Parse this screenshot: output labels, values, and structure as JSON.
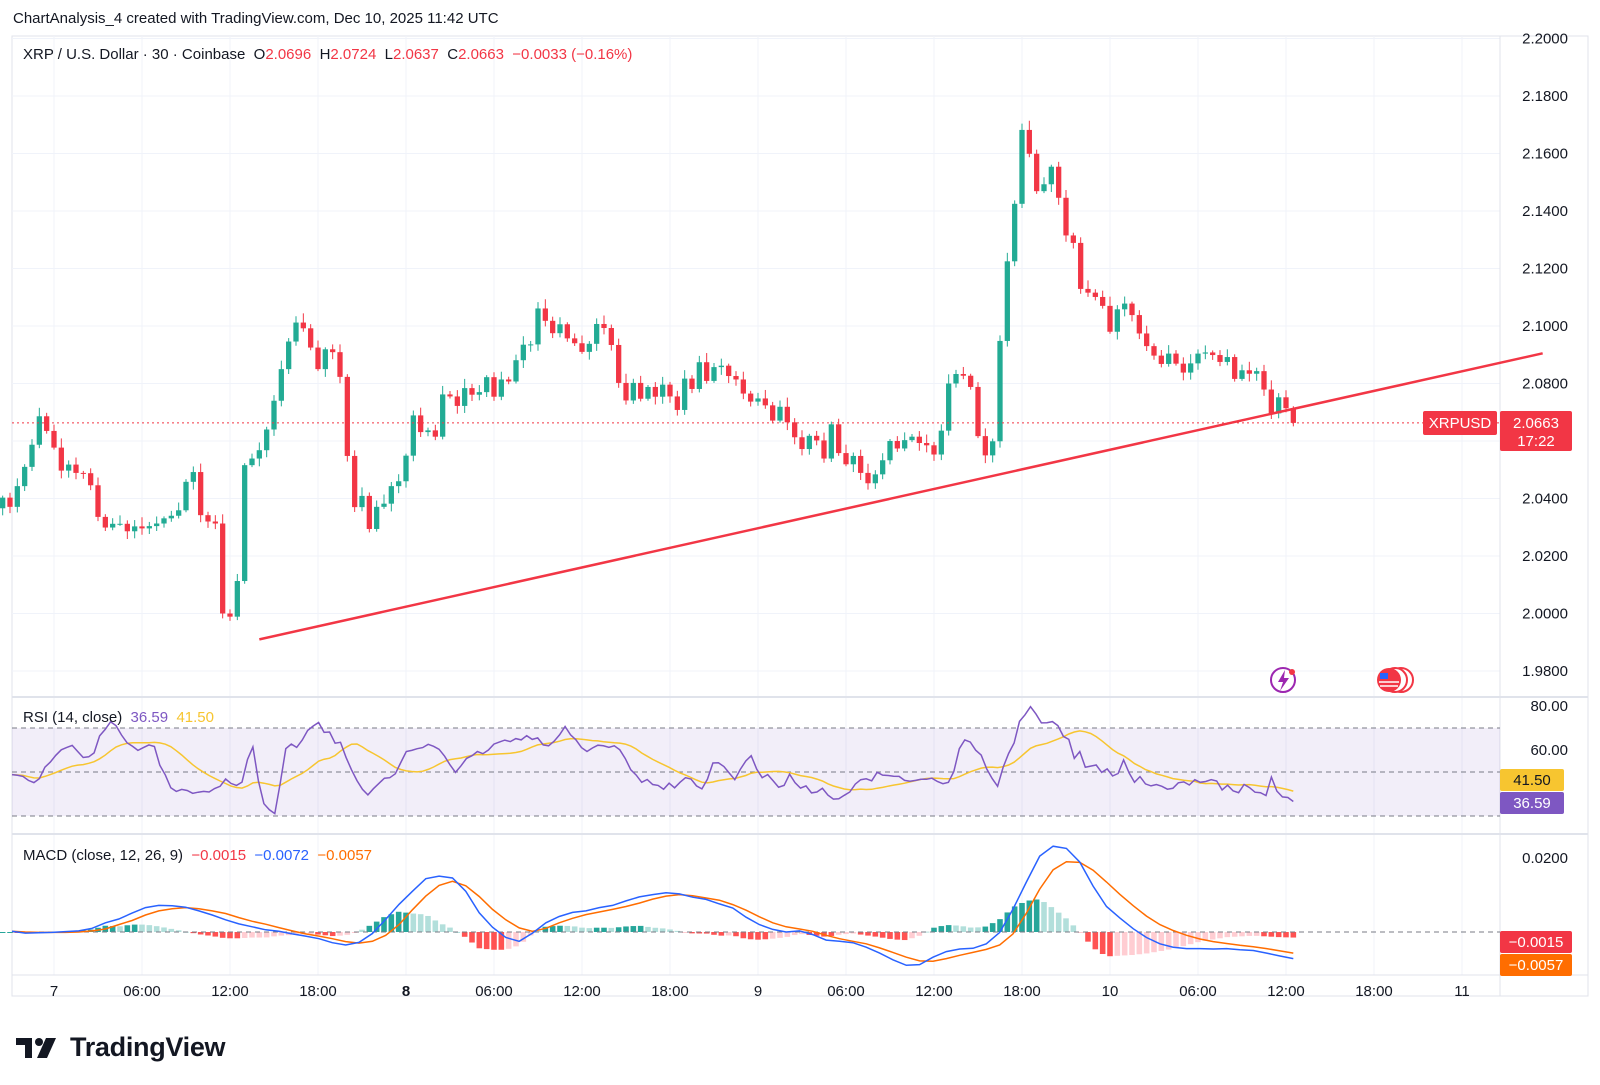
{
  "header": {
    "credit": "ChartAnalysis_4 created with TradingView.com, Dec 10, 2025 11:42 UTC"
  },
  "legend": {
    "symbol": "XRP / U.S. Dollar · 30 · Coinbase",
    "o_label": "O",
    "o_value": "2.0696",
    "h_label": "H",
    "h_value": "2.0724",
    "l_label": "L",
    "l_value": "2.0637",
    "c_label": "C",
    "c_value": "2.0663",
    "change": "−0.0033 (−0.16%)"
  },
  "price_tag": {
    "symbol": "XRPUSD",
    "price": "2.0663",
    "countdown": "17:22"
  },
  "rsi": {
    "label": "RSI (14, close)",
    "value": "36.59",
    "ma_value": "41.50"
  },
  "macd": {
    "label": "MACD (close, 12, 26, 9)",
    "hist": "−0.0015",
    "macd": "−0.0072",
    "signal": "−0.0057"
  },
  "brand": {
    "name": "TradingView"
  },
  "colors": {
    "up": "#22ab94",
    "down": "#f23645",
    "trendline": "#f23645",
    "rsi_line": "#7e57c2",
    "rsi_ma": "#f7c530",
    "macd_line": "#2962ff",
    "signal_line": "#ff6d00"
  },
  "chart_data": {
    "type": "candlestick",
    "title": "XRP / U.S. Dollar · 30 · Coinbase",
    "x_ticks": [
      "7",
      "06:00",
      "12:00",
      "18:00",
      "8",
      "06:00",
      "12:00",
      "18:00",
      "9",
      "06:00",
      "12:00",
      "18:00",
      "10",
      "06:00",
      "12:00",
      "18:00",
      "11"
    ],
    "price_axis": {
      "ticks": [
        "2.2000",
        "2.1800",
        "2.1600",
        "2.1400",
        "2.1200",
        "2.1000",
        "2.0800",
        "2.0400",
        "2.0200",
        "2.0000",
        "1.9800"
      ],
      "range": [
        1.975,
        2.2
      ]
    },
    "candle_closes": [
      2.0351,
      2.0336,
      2.0316,
      2.0341,
      2.0321,
      2.0292,
      2.0282,
      2.0335,
      2.0348,
      2.0372,
      2.0366,
      2.0403,
      2.0371,
      2.0443,
      2.051,
      2.0587,
      2.0686,
      2.0635,
      2.0577,
      2.0497,
      2.0518,
      2.0489,
      2.0488,
      2.0446,
      2.0336,
      2.0299,
      2.0312,
      2.0312,
      2.0286,
      2.0303,
      2.0296,
      2.0304,
      2.0313,
      2.0331,
      2.034,
      2.0359,
      2.0458,
      2.0492,
      2.0342,
      2.032,
      2.0313,
      2.0,
      1.9989,
      2.0113,
      2.0516,
      2.0539,
      2.0568,
      2.064,
      2.074,
      2.085,
      2.0946,
      2.1012,
      2.0992,
      2.0925,
      2.085,
      2.0919,
      2.0909,
      2.0823,
      2.0548,
      2.037,
      2.0409,
      2.0294,
      2.0371,
      2.0382,
      2.0443,
      2.046,
      2.0549,
      2.0689,
      2.0631,
      2.0637,
      2.0615,
      2.0762,
      2.0755,
      2.0722,
      2.0784,
      2.0761,
      2.077,
      2.0822,
      2.0754,
      2.0814,
      2.0807,
      2.0881,
      2.0935,
      2.0936,
      2.1061,
      2.1018,
      2.0975,
      2.1006,
      2.0957,
      2.094,
      2.091,
      2.0938,
      2.1007,
      2.0993,
      2.0934,
      2.0802,
      2.0741,
      2.0802,
      2.0747,
      2.0788,
      2.0754,
      2.0796,
      2.0755,
      2.0708,
      2.0817,
      2.0781,
      2.0874,
      2.0809,
      2.0857,
      2.0862,
      2.0826,
      2.0814,
      2.0765,
      2.0737,
      2.0748,
      2.0724,
      2.0671,
      2.0719,
      2.0665,
      2.0613,
      2.0572,
      2.0618,
      2.0602,
      2.0539,
      2.0658,
      2.0558,
      2.0519,
      2.0548,
      2.0489,
      2.0453,
      2.0484,
      2.0533,
      2.06,
      2.0574,
      2.0603,
      2.0615,
      2.0593,
      2.0585,
      2.0553,
      2.0636,
      2.08,
      2.0833,
      2.0827,
      2.0788,
      2.0617,
      2.055,
      2.0599,
      2.0948,
      2.1225,
      2.1425,
      2.1682,
      2.1599,
      2.1469,
      2.1493,
      2.1554,
      2.1446,
      2.1315,
      2.1289,
      2.1129,
      2.1116,
      2.1101,
      2.107,
      2.098,
      2.1058,
      2.1078,
      2.1038,
      2.0974,
      2.093,
      2.0897,
      2.0868,
      2.0904,
      2.0869,
      2.0838,
      2.087,
      2.0904,
      2.0908,
      2.0899,
      2.0875,
      2.0892,
      2.0816,
      2.0846,
      2.0834,
      2.0843,
      2.0779,
      2.0696,
      2.0752,
      2.0714,
      2.0663
    ],
    "trendline": {
      "color": "#f23645",
      "points": [
        {
          "date": "Dec 7 14:00",
          "price": 1.991
        },
        {
          "date": "Dec 11 05:30",
          "price": 2.0905
        }
      ]
    },
    "last_price": 2.0663,
    "rsi": {
      "name": "RSI (14, close)",
      "axis_ticks": [
        "80.00",
        "60.00"
      ],
      "range": [
        30,
        81
      ],
      "bands": [
        70,
        50,
        30
      ],
      "values": [
        48.8,
        48.5,
        48.0,
        46.2,
        45.2,
        47.0,
        52.2,
        54.5,
        57.6,
        60.1,
        61.2,
        62.1,
        59.3,
        56.6,
        56.9,
        58.7,
        66.4,
        69.3,
        72.8,
        71.1,
        66.8,
        63.3,
        61.7,
        59.8,
        61.1,
        62.3,
        61.6,
        53.1,
        48.7,
        42.8,
        41.2,
        42.1,
        41.6,
        40.3,
        40.8,
        41.2,
        40.9,
        42.5,
        43.5,
        46.8,
        44.8,
        43.9,
        45.4,
        55.7,
        61.4,
        46.0,
        35.6,
        32.8,
        31.1,
        45.1,
        60.6,
        62.7,
        61.2,
        64.5,
        68.9,
        70.9,
        72.5,
        68.0,
        68.2,
        63.1,
        63.5,
        56.7,
        51.0,
        46.1,
        42.1,
        39.6,
        42.4,
        44.8,
        47.2,
        47.4,
        49.2,
        54.3,
        59.3,
        59.8,
        60.6,
        61.1,
        62.6,
        61.7,
        60.3,
        57.2,
        53.2,
        49.8,
        52.8,
        56.2,
        57.4,
        59.3,
        58.3,
        60.0,
        62.7,
        63.6,
        64.5,
        63.8,
        65.2,
        64.6,
        66.5,
        64.8,
        65.5,
        62.3,
        61.9,
        64.0,
        66.9,
        70.7,
        66.9,
        64.6,
        61.1,
        59.3,
        60.9,
        62.2,
        61.9,
        61.2,
        61.9,
        60.1,
        56.1,
        51.0,
        48.6,
        45.3,
        46.6,
        44.3,
        43.9,
        42.2,
        44.9,
        42.8,
        45.3,
        47.4,
        46.8,
        43.7,
        42.3,
        46.7,
        54.1,
        54.2,
        52.5,
        49.5,
        46.5,
        51.2,
        55.0,
        57.4,
        51.3,
        47.4,
        48.8,
        46.0,
        43.1,
        43.9,
        49.0,
        45.2,
        42.7,
        43.7,
        40.5,
        40.9,
        42.6,
        39.5,
        37.7,
        37.8,
        39.4,
        40.9,
        44.5,
        46.5,
        46.9,
        46.0,
        49.9,
        48.6,
        48.4,
        48.1,
        48.0,
        46.2,
        45.8,
        46.2,
        46.7,
        46.7,
        47.2,
        45.7,
        44.7,
        45.3,
        50.2,
        60.6,
        64.6,
        63.6,
        59.9,
        57.7,
        51.4,
        47.0,
        43.5,
        52.1,
        58.4,
        63.2,
        73.0,
        76.0,
        79.7,
        76.3,
        72.3,
        72.4,
        72.9,
        71.1,
        66.2,
        64.8,
        56.2,
        59.3,
        52.2,
        52.7,
        53.2,
        49.8,
        51.4,
        48.2,
        49.3,
        55.5,
        49.6,
        45.3,
        47.9,
        44.6,
        43.7,
        44.3,
        43.5,
        42.2,
        42.6,
        45.1,
        45.5,
        44.1,
        46.5,
        45.3,
        45.7,
        46.5,
        45.9,
        41.8,
        44.0,
        41.4,
        40.6,
        44.3,
        42.9,
        40.8,
        40.6,
        39.3,
        47.7,
        41.3,
        38.7,
        38.4,
        36.6
      ]
    },
    "macd": {
      "name": "MACD (close, 12, 26, 9)",
      "axis_ticks": [
        "0.0200"
      ],
      "zero_line": 0,
      "range": [
        -0.0095,
        0.026
      ],
      "macd_values": [
        0.0002,
        -0.0003,
        -0.0002,
        -0.0001,
        0.0001,
        0.0003,
        0.001,
        0.0025,
        0.0035,
        0.0051,
        0.0066,
        0.0072,
        0.0071,
        0.0067,
        0.0057,
        0.0046,
        0.0033,
        0.0022,
        0.0014,
        0.0006,
        0.0002,
        -0.0005,
        -0.0011,
        -0.0018,
        -0.0029,
        -0.0035,
        -0.0028,
        -0.0004,
        0.0034,
        0.0075,
        0.011,
        0.0144,
        0.0151,
        0.0146,
        0.011,
        0.0052,
        0.0013,
        -0.0015,
        -0.0025,
        -0.0003,
        0.0025,
        0.0042,
        0.0053,
        0.0057,
        0.0066,
        0.0072,
        0.0084,
        0.0095,
        0.0101,
        0.0106,
        0.0103,
        0.0094,
        0.0088,
        0.0076,
        0.0065,
        0.004,
        0.002,
        0.0007,
        0.0,
        0.0003,
        -0.0007,
        -0.0022,
        -0.0025,
        -0.0029,
        -0.0041,
        -0.0057,
        -0.0075,
        -0.009,
        -0.0088,
        -0.0068,
        -0.0053,
        -0.0046,
        -0.0044,
        -0.0032,
        -0.0001,
        0.0062,
        0.0135,
        0.0205,
        0.0232,
        0.0226,
        0.0189,
        0.0124,
        0.0069,
        0.0038,
        0.0009,
        -0.0015,
        -0.0032,
        -0.0041,
        -0.0045,
        -0.0045,
        -0.0046,
        -0.0045,
        -0.0048,
        -0.005,
        -0.0057,
        -0.0065,
        -0.0072
      ],
      "signal_values": [
        0.0002,
        0.0,
        -0.0001,
        -0.0001,
        -0.0001,
        0.0,
        0.0003,
        0.0008,
        0.002,
        0.0031,
        0.0046,
        0.0057,
        0.0063,
        0.0066,
        0.0063,
        0.0057,
        0.005,
        0.0039,
        0.0029,
        0.0021,
        0.0012,
        0.0003,
        -0.0005,
        -0.0011,
        -0.0018,
        -0.0026,
        -0.003,
        -0.0025,
        -0.0009,
        0.002,
        0.006,
        0.0097,
        0.0126,
        0.0137,
        0.0125,
        0.0096,
        0.0061,
        0.0033,
        0.0011,
        0.0002,
        0.001,
        0.0025,
        0.0037,
        0.0047,
        0.0054,
        0.0061,
        0.0069,
        0.0078,
        0.0089,
        0.0097,
        0.0101,
        0.0098,
        0.0092,
        0.0086,
        0.0074,
        0.0059,
        0.0041,
        0.0025,
        0.0014,
        0.0008,
        0.0002,
        -0.0009,
        -0.0018,
        -0.0025,
        -0.0032,
        -0.0043,
        -0.0055,
        -0.0068,
        -0.0078,
        -0.0079,
        -0.0072,
        -0.0063,
        -0.0055,
        -0.0047,
        -0.0035,
        -0.0005,
        0.0051,
        0.0116,
        0.0168,
        0.019,
        0.0188,
        0.0167,
        0.0135,
        0.0102,
        0.0071,
        0.0043,
        0.002,
        0.0004,
        -0.0009,
        -0.0019,
        -0.0026,
        -0.0031,
        -0.0036,
        -0.004,
        -0.0045,
        -0.0051,
        -0.0057
      ]
    }
  }
}
